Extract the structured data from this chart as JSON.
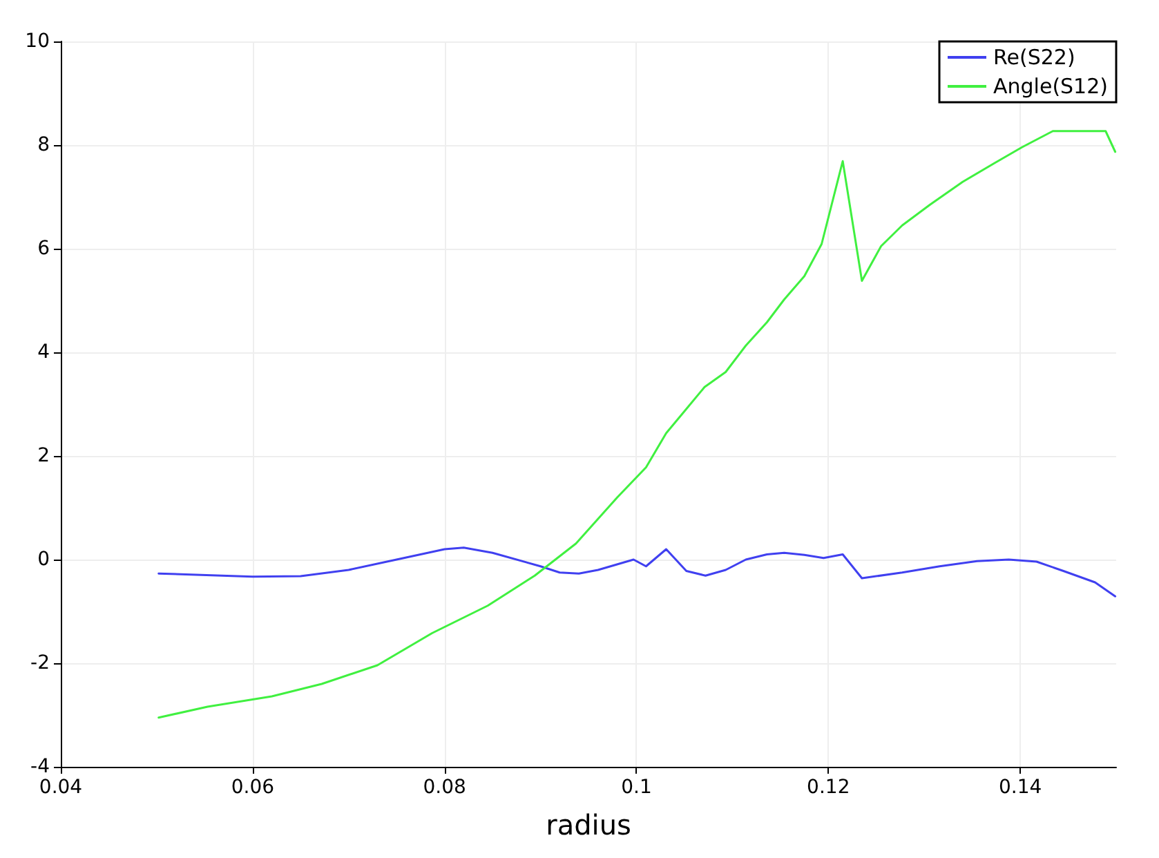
{
  "chart_data": {
    "type": "line",
    "xlabel": "radius",
    "xlim": [
      0.04,
      0.15
    ],
    "xticks": [
      0.04,
      0.06,
      0.08,
      0.1,
      0.12,
      0.14
    ],
    "ylim": [
      -4,
      10
    ],
    "yticks": [
      -4,
      -2,
      0,
      2,
      4,
      6,
      8,
      10
    ],
    "grid": true,
    "legend": "top right",
    "marker": "none",
    "line_style": "solid",
    "series": [
      {
        "name": "Re(S22)",
        "color": "#4040f0",
        "x": [
          0.0502,
          0.06,
          0.065,
          0.07,
          0.075,
          0.08,
          0.082,
          0.085,
          0.09,
          0.092,
          0.094,
          0.096,
          0.0997,
          0.101,
          0.1031,
          0.1052,
          0.1072,
          0.1093,
          0.1114,
          0.1136,
          0.1154,
          0.1175,
          0.1195,
          0.1215,
          0.1235,
          0.1277,
          0.1316,
          0.1355,
          0.1388,
          0.1417,
          0.1445,
          0.1478,
          0.1499
        ],
        "values": [
          -0.27,
          -0.33,
          -0.32,
          -0.2,
          0,
          0.2,
          0.23,
          0.13,
          -0.13,
          -0.25,
          -0.27,
          -0.2,
          0,
          -0.13,
          0.2,
          -0.22,
          -0.31,
          -0.2,
          0,
          0.1,
          0.13,
          0.09,
          0.03,
          0.1,
          -0.36,
          -0.25,
          -0.13,
          -0.03,
          0,
          -0.04,
          -0.22,
          -0.44,
          -0.71
        ]
      },
      {
        "name": "Angle(S12)",
        "color": "#40f040",
        "x": [
          0.0502,
          0.0553,
          0.062,
          0.0672,
          0.073,
          0.0787,
          0.0845,
          0.0894,
          0.0937,
          0.098,
          0.101,
          0.1031,
          0.1049,
          0.1071,
          0.1093,
          0.1114,
          0.1136,
          0.1154,
          0.1175,
          0.1193,
          0.1215,
          0.1235,
          0.1255,
          0.1277,
          0.1306,
          0.134,
          0.1373,
          0.1402,
          0.1434,
          0.1489,
          0.1499
        ],
        "values": [
          -3.05,
          -2.84,
          -2.64,
          -2.4,
          -2.04,
          -1.42,
          -0.89,
          -0.31,
          0.31,
          1.2,
          1.78,
          2.44,
          2.84,
          3.33,
          3.62,
          4.13,
          4.58,
          5.02,
          5.47,
          6.09,
          7.69,
          5.38,
          6.05,
          6.45,
          6.85,
          7.29,
          7.65,
          7.96,
          8.27,
          8.27,
          7.87
        ]
      }
    ]
  }
}
